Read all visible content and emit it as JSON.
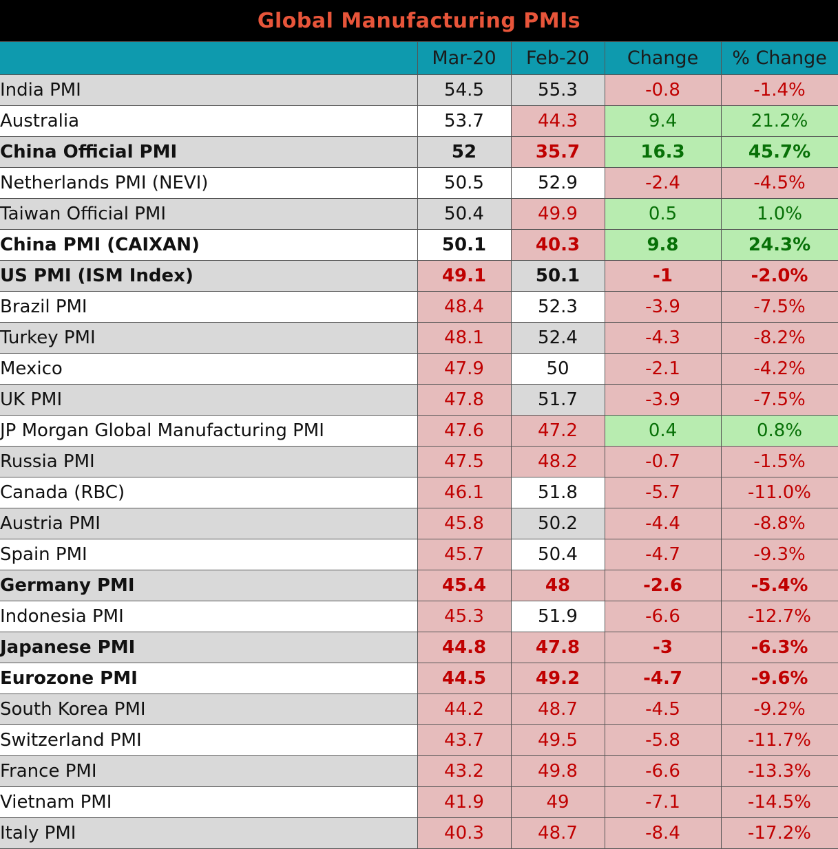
{
  "chart_data": {
    "type": "table",
    "title": "Global Manufacturing PMIs",
    "columns": [
      "",
      "Mar-20",
      "Feb-20",
      "Change",
      "% Change"
    ],
    "colors": {
      "header_bg": "#0e9aae",
      "title_bg": "#000000",
      "title_text": "#e8553a",
      "negative_bg": "#e6bcbc",
      "negative_text": "#c00000",
      "positive_bg": "#b8ecb0",
      "positive_text": "#077007"
    },
    "rows": [
      {
        "label": "India PMI",
        "mar": "54.5",
        "feb": "55.3",
        "change": "-0.8",
        "pct": "-1.4%",
        "bold": false,
        "styles": [
          "neutral",
          "neutral",
          "neg",
          "neg"
        ]
      },
      {
        "label": "Australia",
        "mar": "53.7",
        "feb": "44.3",
        "change": "9.4",
        "pct": "21.2%",
        "bold": false,
        "styles": [
          "neutral",
          "neg",
          "pos",
          "pos"
        ]
      },
      {
        "label": "China Official PMI",
        "mar": "52",
        "feb": "35.7",
        "change": "16.3",
        "pct": "45.7%",
        "bold": true,
        "styles": [
          "neutral",
          "neg",
          "pos",
          "pos"
        ]
      },
      {
        "label": "Netherlands PMI (NEVI)",
        "mar": "50.5",
        "feb": "52.9",
        "change": "-2.4",
        "pct": "-4.5%",
        "bold": false,
        "styles": [
          "neutral",
          "neutral",
          "neg",
          "neg"
        ]
      },
      {
        "label": "Taiwan Official PMI",
        "mar": "50.4",
        "feb": "49.9",
        "change": "0.5",
        "pct": "1.0%",
        "bold": false,
        "styles": [
          "neutral",
          "neg",
          "pos",
          "pos"
        ]
      },
      {
        "label": "China PMI (CAIXAN)",
        "mar": "50.1",
        "feb": "40.3",
        "change": "9.8",
        "pct": "24.3%",
        "bold": true,
        "styles": [
          "neutral",
          "neg",
          "pos",
          "pos"
        ]
      },
      {
        "label": "US PMI (ISM Index)",
        "mar": "49.1",
        "feb": "50.1",
        "change": "-1",
        "pct": "-2.0%",
        "bold": true,
        "styles": [
          "neg",
          "neutral",
          "neg",
          "neg"
        ]
      },
      {
        "label": "Brazil PMI",
        "mar": "48.4",
        "feb": "52.3",
        "change": "-3.9",
        "pct": "-7.5%",
        "bold": false,
        "styles": [
          "neg",
          "neutral",
          "neg",
          "neg"
        ]
      },
      {
        "label": "Turkey PMI",
        "mar": "48.1",
        "feb": "52.4",
        "change": "-4.3",
        "pct": "-8.2%",
        "bold": false,
        "styles": [
          "neg",
          "neutral",
          "neg",
          "neg"
        ]
      },
      {
        "label": "Mexico",
        "mar": "47.9",
        "feb": "50",
        "change": "-2.1",
        "pct": "-4.2%",
        "bold": false,
        "styles": [
          "neg",
          "neutral",
          "neg",
          "neg"
        ]
      },
      {
        "label": "UK PMI",
        "mar": "47.8",
        "feb": "51.7",
        "change": "-3.9",
        "pct": "-7.5%",
        "bold": false,
        "styles": [
          "neg",
          "neutral",
          "neg",
          "neg"
        ]
      },
      {
        "label": "JP Morgan Global Manufacturing PMI",
        "mar": "47.6",
        "feb": "47.2",
        "change": "0.4",
        "pct": "0.8%",
        "bold": false,
        "styles": [
          "neg",
          "neg",
          "pos",
          "pos"
        ]
      },
      {
        "label": "Russia PMI",
        "mar": "47.5",
        "feb": "48.2",
        "change": "-0.7",
        "pct": "-1.5%",
        "bold": false,
        "styles": [
          "neg",
          "neg",
          "neg",
          "neg"
        ]
      },
      {
        "label": "Canada (RBC)",
        "mar": "46.1",
        "feb": "51.8",
        "change": "-5.7",
        "pct": "-11.0%",
        "bold": false,
        "styles": [
          "neg",
          "neutral",
          "neg",
          "neg"
        ]
      },
      {
        "label": "Austria PMI",
        "mar": "45.8",
        "feb": "50.2",
        "change": "-4.4",
        "pct": "-8.8%",
        "bold": false,
        "styles": [
          "neg",
          "neutral",
          "neg",
          "neg"
        ]
      },
      {
        "label": "Spain PMI",
        "mar": "45.7",
        "feb": "50.4",
        "change": "-4.7",
        "pct": "-9.3%",
        "bold": false,
        "styles": [
          "neg",
          "neutral",
          "neg",
          "neg"
        ]
      },
      {
        "label": "Germany PMI",
        "mar": "45.4",
        "feb": "48",
        "change": "-2.6",
        "pct": "-5.4%",
        "bold": true,
        "styles": [
          "neg",
          "neg",
          "neg",
          "neg"
        ]
      },
      {
        "label": "Indonesia PMI",
        "mar": "45.3",
        "feb": "51.9",
        "change": "-6.6",
        "pct": "-12.7%",
        "bold": false,
        "styles": [
          "neg",
          "neutral",
          "neg",
          "neg"
        ]
      },
      {
        "label": "Japanese PMI",
        "mar": "44.8",
        "feb": "47.8",
        "change": "-3",
        "pct": "-6.3%",
        "bold": true,
        "styles": [
          "neg",
          "neg",
          "neg",
          "neg"
        ]
      },
      {
        "label": "Eurozone PMI",
        "mar": "44.5",
        "feb": "49.2",
        "change": "-4.7",
        "pct": "-9.6%",
        "bold": true,
        "styles": [
          "neg",
          "neg",
          "neg",
          "neg"
        ]
      },
      {
        "label": "South Korea PMI",
        "mar": "44.2",
        "feb": "48.7",
        "change": "-4.5",
        "pct": "-9.2%",
        "bold": false,
        "styles": [
          "neg",
          "neg",
          "neg",
          "neg"
        ]
      },
      {
        "label": "Switzerland PMI",
        "mar": "43.7",
        "feb": "49.5",
        "change": "-5.8",
        "pct": "-11.7%",
        "bold": false,
        "styles": [
          "neg",
          "neg",
          "neg",
          "neg"
        ]
      },
      {
        "label": "France PMI",
        "mar": "43.2",
        "feb": "49.8",
        "change": "-6.6",
        "pct": "-13.3%",
        "bold": false,
        "styles": [
          "neg",
          "neg",
          "neg",
          "neg"
        ]
      },
      {
        "label": "Vietnam PMI",
        "mar": "41.9",
        "feb": "49",
        "change": "-7.1",
        "pct": "-14.5%",
        "bold": false,
        "styles": [
          "neg",
          "neg",
          "neg",
          "neg"
        ]
      },
      {
        "label": "Italy PMI",
        "mar": "40.3",
        "feb": "48.7",
        "change": "-8.4",
        "pct": "-17.2%",
        "bold": false,
        "styles": [
          "neg",
          "neg",
          "neg",
          "neg"
        ]
      }
    ]
  }
}
